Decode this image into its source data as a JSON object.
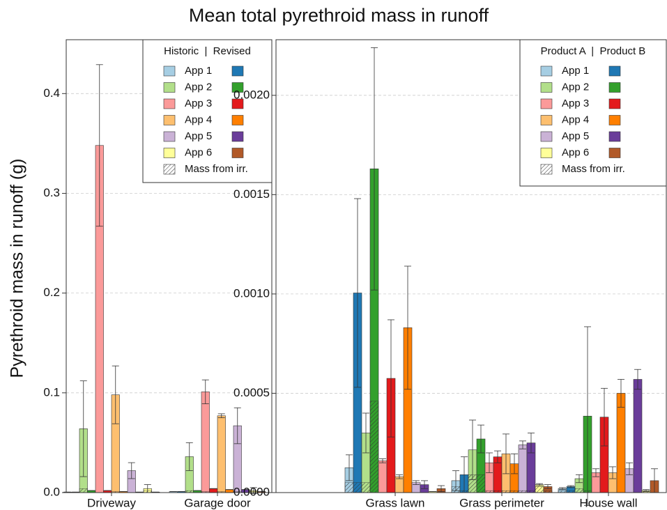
{
  "chart_data": [
    {
      "type": "bar",
      "title": "Mean total pyrethroid mass in runoff",
      "ylabel": "Pyrethroid mass in runoff (g)",
      "legend_title": "Historic  |  Revised",
      "hatch_label": "Mass from irr.",
      "categories": [
        "Driveway",
        "Garage door"
      ],
      "ylim": [
        0,
        0.454
      ],
      "yticks": [
        {
          "value": 0,
          "label": "0.0"
        },
        0.1,
        0.2,
        0.3,
        0.4
      ],
      "grid": true,
      "series": [
        {
          "name": "App 1",
          "color": "#a6cee3",
          "values": [
            0.0005,
            0.001
          ],
          "errors": [
            0,
            0
          ],
          "irr": [
            0,
            0
          ]
        },
        {
          "name": "App 1",
          "color": "#1f78b4",
          "values": [
            0.0005,
            0.001
          ],
          "errors": [
            0,
            0
          ],
          "irr": [
            0,
            0
          ]
        },
        {
          "name": "App 2",
          "color": "#b2df8a",
          "values": [
            0.064,
            0.036
          ],
          "errors": [
            0.048,
            0.014
          ],
          "irr": [
            0.004,
            0.002
          ]
        },
        {
          "name": "App 2",
          "color": "#33a02c",
          "values": [
            0.002,
            0.002
          ],
          "errors": [
            0,
            0
          ],
          "irr": [
            0,
            0
          ]
        },
        {
          "name": "App 3",
          "color": "#fb9a99",
          "values": [
            0.348,
            0.101
          ],
          "errors": [
            0.081,
            0.012
          ],
          "irr": [
            0,
            0.001
          ]
        },
        {
          "name": "App 3",
          "color": "#e31a1c",
          "values": [
            0.002,
            0.004
          ],
          "errors": [
            0,
            0
          ],
          "irr": [
            0,
            0
          ]
        },
        {
          "name": "App 4",
          "color": "#fdbf6f",
          "values": [
            0.098,
            0.077
          ],
          "errors": [
            0.029,
            0.002
          ],
          "irr": [
            0.001,
            0.001
          ]
        },
        {
          "name": "App 4",
          "color": "#ff7f00",
          "values": [
            0.001,
            0.003
          ],
          "errors": [
            0,
            0
          ],
          "irr": [
            0,
            0
          ]
        },
        {
          "name": "App 5",
          "color": "#cab2d6",
          "values": [
            0.022,
            0.067
          ],
          "errors": [
            0.008,
            0.018
          ],
          "irr": [
            0,
            0.001
          ]
        },
        {
          "name": "App 5",
          "color": "#6a3d9a",
          "values": [
            0.0005,
            0.003
          ],
          "errors": [
            0,
            0
          ],
          "irr": [
            0,
            0
          ]
        },
        {
          "name": "App 6",
          "color": "#ffff99",
          "values": [
            0.004,
            0.002
          ],
          "errors": [
            0.004,
            0.003
          ],
          "irr": [
            0.002,
            0.001
          ]
        },
        {
          "name": "App 6",
          "color": "#b15928",
          "values": [
            0.0005,
            0.001
          ],
          "errors": [
            0,
            0
          ],
          "irr": [
            0,
            0
          ]
        }
      ]
    },
    {
      "type": "bar",
      "legend_title": "Product A  |  Product B",
      "hatch_label": "Mass from irr.",
      "categories": [
        "Grass lawn",
        "Grass perimeter",
        "House wall"
      ],
      "ylim": [
        0,
        0.00228
      ],
      "yticks": [
        {
          "value": 0,
          "label": "0.0000"
        },
        {
          "value": 0.0005,
          "label": "0.0005"
        },
        {
          "value": 0.001,
          "label": "0.0010"
        },
        {
          "value": 0.0015,
          "label": "0.0015"
        },
        {
          "value": 0.002,
          "label": "0.0020"
        }
      ],
      "grid": true,
      "series": [
        {
          "name": "App 1",
          "color": "#a6cee3",
          "values": [
            0.000125,
            6e-05,
            2e-05
          ],
          "errors": [
            6.5e-05,
            5e-05,
            5e-06
          ],
          "irr": [
            5e-05,
            3e-05,
            1e-05
          ]
        },
        {
          "name": "App 1",
          "color": "#1f78b4",
          "values": [
            0.001005,
            9e-05,
            3e-05
          ],
          "errors": [
            0.000475,
            9e-05,
            5e-06
          ],
          "irr": [
            5e-05,
            1e-05,
            1e-05
          ]
        },
        {
          "name": "App 2",
          "color": "#b2df8a",
          "values": [
            0.0003,
            0.000215,
            7e-05
          ],
          "errors": [
            0.0001,
            0.00015,
            2e-05
          ],
          "irr": [
            5e-05,
            9e-05,
            2e-05
          ]
        },
        {
          "name": "App 2",
          "color": "#33a02c",
          "values": [
            0.00163,
            0.00027,
            0.000385
          ],
          "errors": [
            0.00061,
            7e-05,
            0.00045
          ],
          "irr": [
            0.00046,
            9e-05,
            1e-05
          ]
        },
        {
          "name": "App 3",
          "color": "#fb9a99",
          "values": [
            0.00016,
            0.00015,
            0.0001
          ],
          "errors": [
            1e-05,
            5e-05,
            2e-05
          ],
          "irr": [
            0,
            1e-05,
            0
          ]
        },
        {
          "name": "App 3",
          "color": "#e31a1c",
          "values": [
            0.000575,
            0.00018,
            0.00038
          ],
          "errors": [
            0.000295,
            3e-05,
            0.000145
          ],
          "irr": [
            0,
            1e-05,
            0
          ]
        },
        {
          "name": "App 4",
          "color": "#fdbf6f",
          "values": [
            8e-05,
            0.000195,
            0.0001
          ],
          "errors": [
            1e-05,
            0.0001,
            3e-05
          ],
          "irr": [
            0,
            1e-05,
            0
          ]
        },
        {
          "name": "App 4",
          "color": "#ff7f00",
          "values": [
            0.00083,
            0.000145,
            0.0005
          ],
          "errors": [
            0.00031,
            5e-05,
            7e-05
          ],
          "irr": [
            0,
            1e-05,
            0
          ]
        },
        {
          "name": "App 5",
          "color": "#cab2d6",
          "values": [
            5e-05,
            0.00024,
            0.00012
          ],
          "errors": [
            1e-05,
            2e-05,
            3e-05
          ],
          "irr": [
            0,
            1e-05,
            0
          ]
        },
        {
          "name": "App 5",
          "color": "#6a3d9a",
          "values": [
            4e-05,
            0.00025,
            0.00057
          ],
          "errors": [
            2e-05,
            5e-05,
            5e-05
          ],
          "irr": [
            0,
            1e-05,
            0
          ]
        },
        {
          "name": "App 6",
          "color": "#ffff99",
          "values": [
            5e-06,
            4e-05,
            1e-05
          ],
          "errors": [
            0,
            5e-06,
            5e-06
          ],
          "irr": [
            0,
            3e-05,
            1e-05
          ]
        },
        {
          "name": "App 6",
          "color": "#b15928",
          "values": [
            2e-05,
            3e-05,
            6e-05
          ],
          "errors": [
            1.5e-05,
            1e-05,
            6e-05
          ],
          "irr": [
            0,
            1e-05,
            0
          ]
        }
      ]
    }
  ]
}
